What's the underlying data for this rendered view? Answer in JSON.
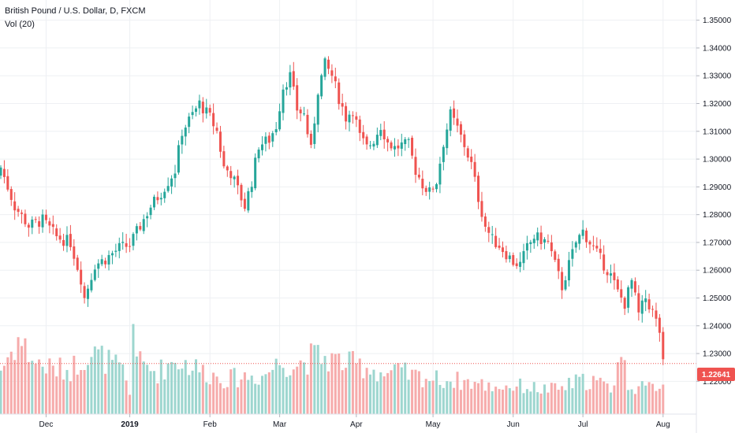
{
  "legend": {
    "title": "British Pound / U.S. Dollar, D, FXCM",
    "indicator": "Vol (20)"
  },
  "colors": {
    "up": "#26a69a",
    "down": "#ef5350",
    "up_vol": "#9dd6cf",
    "down_vol": "#f6abab",
    "grid": "#eef0f3",
    "axis_text": "#131722",
    "last_price_bg": "#ef5350"
  },
  "chart_data": {
    "type": "candlestick",
    "title": "British Pound / U.S. Dollar, D, FXCM",
    "ylim": [
      1.215,
      1.355
    ],
    "y_ticks": [
      "1.35000",
      "1.34000",
      "1.33000",
      "1.32000",
      "1.31000",
      "1.30000",
      "1.29000",
      "1.28000",
      "1.27000",
      "1.26000",
      "1.25000",
      "1.24000",
      "1.23000",
      "1.22000"
    ],
    "x_ticks": [
      {
        "label": "Dec",
        "index": 13,
        "bold": false
      },
      {
        "label": "2019",
        "index": 37,
        "bold": true
      },
      {
        "label": "Feb",
        "index": 60,
        "bold": false
      },
      {
        "label": "Mar",
        "index": 80,
        "bold": false
      },
      {
        "label": "Apr",
        "index": 102,
        "bold": false
      },
      {
        "label": "May",
        "index": 124,
        "bold": false
      },
      {
        "label": "Jun",
        "index": 147,
        "bold": false
      },
      {
        "label": "Jul",
        "index": 167,
        "bold": false
      },
      {
        "label": "Aug",
        "index": 190,
        "bold": false
      }
    ],
    "last_price": "1.22641",
    "close_path": [
      [
        0,
        1.297
      ],
      [
        4,
        1.283
      ],
      [
        8,
        1.276
      ],
      [
        12,
        1.278
      ],
      [
        16,
        1.272
      ],
      [
        20,
        1.27
      ],
      [
        23,
        1.257
      ],
      [
        24,
        1.25
      ],
      [
        27,
        1.262
      ],
      [
        30,
        1.264
      ],
      [
        34,
        1.268
      ],
      [
        37,
        1.269
      ],
      [
        40,
        1.276
      ],
      [
        43,
        1.283
      ],
      [
        46,
        1.288
      ],
      [
        50,
        1.296
      ],
      [
        52,
        1.31
      ],
      [
        55,
        1.316
      ],
      [
        57,
        1.32
      ],
      [
        60,
        1.315
      ],
      [
        62,
        1.31
      ],
      [
        64,
        1.297
      ],
      [
        66,
        1.295
      ],
      [
        68,
        1.289
      ],
      [
        70,
        1.283
      ],
      [
        72,
        1.292
      ],
      [
        74,
        1.305
      ],
      [
        77,
        1.307
      ],
      [
        79,
        1.312
      ],
      [
        81,
        1.326
      ],
      [
        83,
        1.33
      ],
      [
        85,
        1.318
      ],
      [
        87,
        1.316
      ],
      [
        89,
        1.303
      ],
      [
        91,
        1.325
      ],
      [
        93,
        1.334
      ],
      [
        95,
        1.33
      ],
      [
        97,
        1.322
      ],
      [
        99,
        1.315
      ],
      [
        101,
        1.318
      ],
      [
        103,
        1.308
      ],
      [
        105,
        1.304
      ],
      [
        107,
        1.307
      ],
      [
        109,
        1.312
      ],
      [
        111,
        1.306
      ],
      [
        113,
        1.304
      ],
      [
        115,
        1.305
      ],
      [
        117,
        1.305
      ],
      [
        119,
        1.296
      ],
      [
        121,
        1.291
      ],
      [
        123,
        1.288
      ],
      [
        125,
        1.292
      ],
      [
        127,
        1.306
      ],
      [
        129,
        1.316
      ],
      [
        131,
        1.311
      ],
      [
        133,
        1.305
      ],
      [
        135,
        1.298
      ],
      [
        137,
        1.286
      ],
      [
        139,
        1.276
      ],
      [
        141,
        1.271
      ],
      [
        143,
        1.269
      ],
      [
        145,
        1.266
      ],
      [
        147,
        1.263
      ],
      [
        149,
        1.262
      ],
      [
        151,
        1.268
      ],
      [
        153,
        1.272
      ],
      [
        155,
        1.271
      ],
      [
        157,
        1.27
      ],
      [
        159,
        1.262
      ],
      [
        161,
        1.254
      ],
      [
        163,
        1.262
      ],
      [
        165,
        1.27
      ],
      [
        167,
        1.274
      ],
      [
        169,
        1.27
      ],
      [
        171,
        1.266
      ],
      [
        173,
        1.262
      ],
      [
        175,
        1.258
      ],
      [
        177,
        1.252
      ],
      [
        179,
        1.248
      ],
      [
        181,
        1.256
      ],
      [
        183,
        1.244
      ],
      [
        185,
        1.25
      ],
      [
        187,
        1.245
      ],
      [
        189,
        1.238
      ],
      [
        190,
        1.226
      ]
    ],
    "volume_path": [
      [
        0,
        0.45
      ],
      [
        5,
        0.75
      ],
      [
        10,
        0.52
      ],
      [
        15,
        0.45
      ],
      [
        20,
        0.45
      ],
      [
        25,
        0.62
      ],
      [
        30,
        0.55
      ],
      [
        35,
        0.42
      ],
      [
        37,
        0.2
      ],
      [
        38,
        0.92
      ],
      [
        40,
        0.5
      ],
      [
        45,
        0.42
      ],
      [
        50,
        0.55
      ],
      [
        55,
        0.48
      ],
      [
        60,
        0.4
      ],
      [
        65,
        0.35
      ],
      [
        70,
        0.38
      ],
      [
        75,
        0.38
      ],
      [
        80,
        0.52
      ],
      [
        85,
        0.5
      ],
      [
        88,
        0.55
      ],
      [
        90,
        0.58
      ],
      [
        95,
        0.55
      ],
      [
        100,
        0.5
      ],
      [
        105,
        0.48
      ],
      [
        110,
        0.4
      ],
      [
        115,
        0.42
      ],
      [
        118,
        0.38
      ],
      [
        120,
        0.38
      ],
      [
        125,
        0.35
      ],
      [
        130,
        0.34
      ],
      [
        135,
        0.32
      ],
      [
        140,
        0.28
      ],
      [
        145,
        0.28
      ],
      [
        150,
        0.28
      ],
      [
        155,
        0.25
      ],
      [
        160,
        0.25
      ],
      [
        165,
        0.32
      ],
      [
        170,
        0.34
      ],
      [
        175,
        0.25
      ],
      [
        178,
        0.62
      ],
      [
        180,
        0.3
      ],
      [
        185,
        0.25
      ],
      [
        190,
        0.32
      ]
    ],
    "num_bars": 191
  }
}
